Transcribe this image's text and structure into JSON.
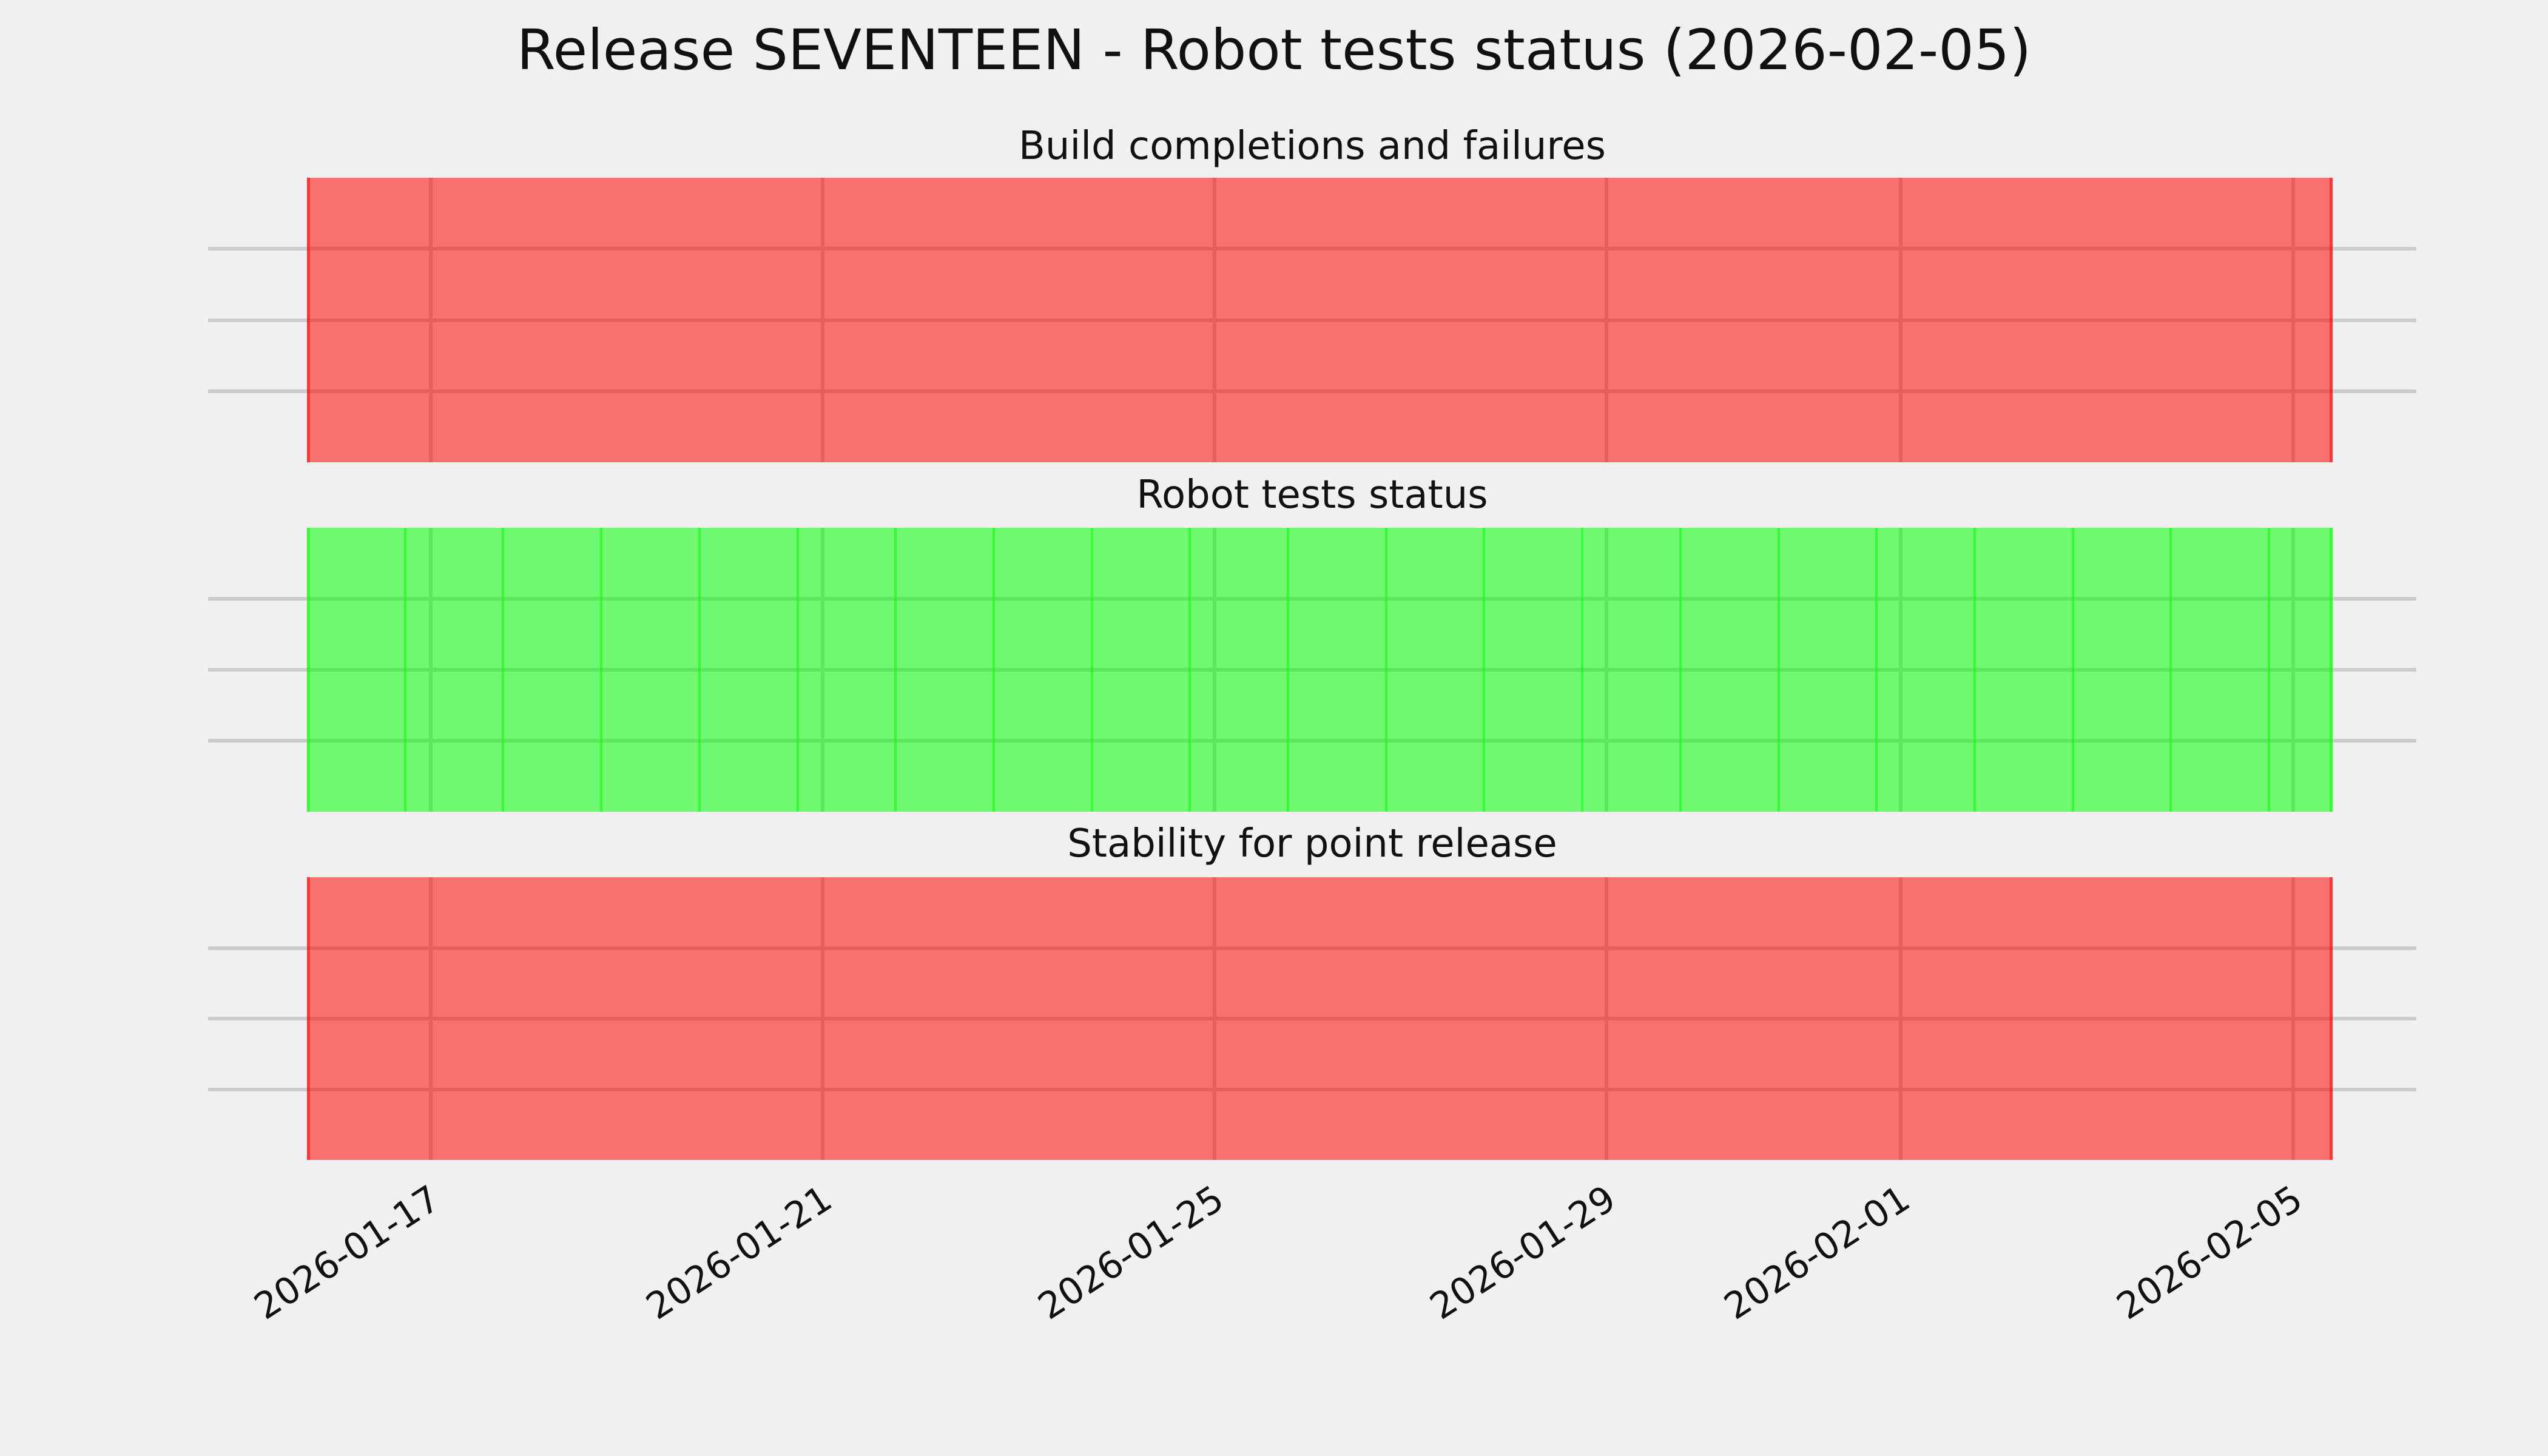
{
  "figure": {
    "background": "#f0f0f0",
    "text_color": "#111111"
  },
  "chart_data": {
    "type": "area",
    "title": "Release SEVENTEEN - Robot tests status (2026-02-05)",
    "release_name": "SEVENTEEN",
    "report_date": "2026-02-05",
    "x_ticks": [
      "2026-01-17",
      "2026-01-21",
      "2026-01-25",
      "2026-01-29",
      "2026-02-01",
      "2026-02-05"
    ],
    "date_span": {
      "start": "2026-01-16",
      "end": "2026-02-05"
    },
    "grid": true,
    "legend": false,
    "gridline_color": "#cbcbcb",
    "alpha": 0.53,
    "status_colors": {
      "success": "#00ff00",
      "failure": "#ff0000"
    },
    "subplots": [
      {
        "title": "Build completions and failures",
        "status": "failure",
        "daily_edges": false
      },
      {
        "title": "Robot tests status",
        "status": "success",
        "daily_edges": true
      },
      {
        "title": "Stability for point release",
        "status": "failure",
        "daily_edges": false
      }
    ]
  }
}
